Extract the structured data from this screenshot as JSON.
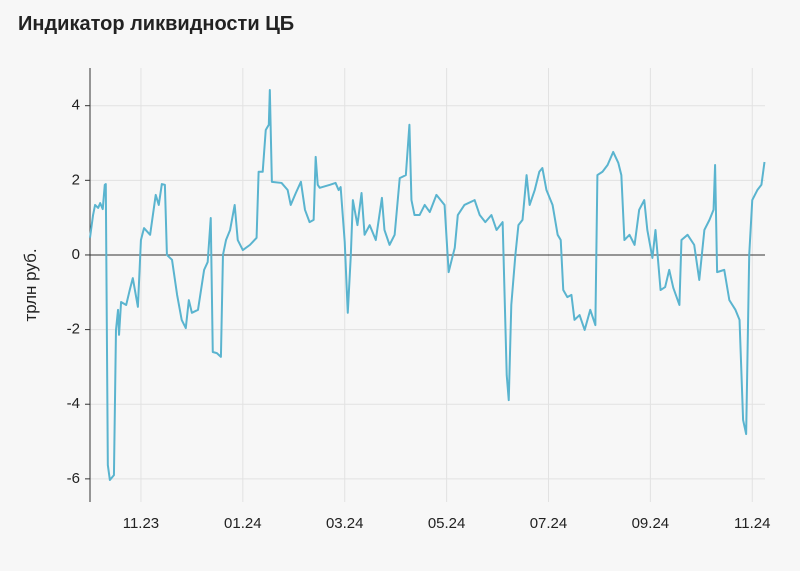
{
  "chart_data": {
    "type": "line",
    "title": "Индикатор ликвидности ЦБ",
    "y_label": "трлн руб.",
    "x": [
      -1.0,
      -0.94,
      -0.9,
      -0.84,
      -0.8,
      -0.75,
      -0.71,
      -0.69,
      -0.65,
      -0.61,
      -0.53,
      -0.49,
      -0.45,
      -0.43,
      -0.39,
      -0.29,
      -0.22,
      -0.16,
      -0.06,
      0,
      0.06,
      0.18,
      0.29,
      0.35,
      0.41,
      0.47,
      0.51,
      0.61,
      0.71,
      0.8,
      0.88,
      0.94,
      1.0,
      1.12,
      1.24,
      1.31,
      1.37,
      1.41,
      1.49,
      1.57,
      1.61,
      1.67,
      1.75,
      1.84,
      1.9,
      2.0,
      2.14,
      2.27,
      2.31,
      2.39,
      2.45,
      2.51,
      2.53,
      2.57,
      2.76,
      2.88,
      2.94,
      3.04,
      3.14,
      3.22,
      3.31,
      3.39,
      3.43,
      3.47,
      3.51,
      3.71,
      3.82,
      3.88,
      3.92,
      4.0,
      4.06,
      4.12,
      4.16,
      4.25,
      4.33,
      4.39,
      4.49,
      4.61,
      4.73,
      4.78,
      4.88,
      4.98,
      5.08,
      5.2,
      5.27,
      5.31,
      5.37,
      5.47,
      5.57,
      5.67,
      5.8,
      5.96,
      6.04,
      6.1,
      6.16,
      6.22,
      6.35,
      6.55,
      6.65,
      6.76,
      6.88,
      6.98,
      7.1,
      7.18,
      7.22,
      7.27,
      7.35,
      7.41,
      7.49,
      7.57,
      7.63,
      7.73,
      7.82,
      7.88,
      7.96,
      8.08,
      8.18,
      8.24,
      8.29,
      8.37,
      8.45,
      8.51,
      8.61,
      8.71,
      8.82,
      8.92,
      8.96,
      9.06,
      9.16,
      9.27,
      9.37,
      9.43,
      9.49,
      9.59,
      9.69,
      9.78,
      9.88,
      9.94,
      10.04,
      10.1,
      10.2,
      10.29,
      10.37,
      10.45,
      10.57,
      10.61,
      10.73,
      10.86,
      10.96,
      11.06,
      11.16,
      11.24,
      11.27,
      11.31,
      11.45,
      11.55,
      11.67,
      11.75,
      11.82,
      11.88,
      11.94,
      12.0,
      12.1,
      12.18,
      12.24
    ],
    "series": [
      {
        "color": "#5ab4cf",
        "values": [
          0.46,
          1.07,
          1.34,
          1.26,
          1.39,
          1.23,
          1.88,
          1.9,
          -5.63,
          -6.03,
          -5.9,
          -2.01,
          -1.47,
          -2.14,
          -1.26,
          -1.34,
          -0.94,
          -0.62,
          -1.39,
          0.4,
          0.72,
          0.54,
          1.61,
          1.34,
          1.9,
          1.88,
          0,
          -0.13,
          -1.07,
          -1.74,
          -1.96,
          -1.21,
          -1.55,
          -1.47,
          -0.4,
          -0.19,
          0.99,
          -2.6,
          -2.63,
          -2.73,
          0,
          0.4,
          0.67,
          1.34,
          0.4,
          0.13,
          0.27,
          0.46,
          2.23,
          2.23,
          3.35,
          3.49,
          4.42,
          1.96,
          1.93,
          1.74,
          1.34,
          1.66,
          1.96,
          1.21,
          0.88,
          0.94,
          2.63,
          1.88,
          1.8,
          1.88,
          1.93,
          1.74,
          1.82,
          0.35,
          -1.55,
          0,
          1.47,
          0.8,
          1.66,
          0.54,
          0.8,
          0.4,
          1.53,
          0.67,
          0.27,
          0.54,
          2.06,
          2.14,
          3.49,
          1.47,
          1.07,
          1.07,
          1.34,
          1.15,
          1.61,
          1.34,
          -0.46,
          -0.13,
          0.19,
          1.07,
          1.34,
          1.47,
          1.07,
          0.88,
          1.07,
          0.67,
          0.88,
          -3.22,
          -3.89,
          -1.34,
          0,
          0.8,
          0.94,
          2.14,
          1.34,
          1.74,
          2.23,
          2.33,
          1.74,
          1.34,
          0.54,
          0.4,
          -0.94,
          -1.13,
          -1.07,
          -1.74,
          -1.61,
          -2.01,
          -1.47,
          -1.88,
          2.14,
          2.23,
          2.41,
          2.76,
          2.47,
          2.14,
          0.4,
          0.54,
          0.27,
          1.21,
          1.47,
          0.67,
          -0.08,
          0.67,
          -0.94,
          -0.86,
          -0.4,
          -0.88,
          -1.34,
          0.4,
          0.54,
          0.27,
          -0.67,
          0.67,
          0.94,
          1.21,
          2.41,
          -0.46,
          -0.4,
          -1.21,
          -1.47,
          -1.74,
          -4.42,
          -4.8,
          0,
          1.47,
          1.74,
          1.88,
          2.49
        ]
      }
    ],
    "xlim": [
      -1,
      12.25
    ],
    "xticks": [
      {
        "value": 0,
        "label": "11.23"
      },
      {
        "value": 2,
        "label": "01.24"
      },
      {
        "value": 4,
        "label": "03.24"
      },
      {
        "value": 6,
        "label": "05.24"
      },
      {
        "value": 8,
        "label": "07.24"
      },
      {
        "value": 10,
        "label": "09.24"
      },
      {
        "value": 12,
        "label": "11.24"
      }
    ],
    "ylim": [
      -6.62,
      5.01
    ],
    "yticks": [
      -6,
      -4,
      -2,
      0,
      2,
      4
    ],
    "grid": true,
    "zero_line": true
  }
}
